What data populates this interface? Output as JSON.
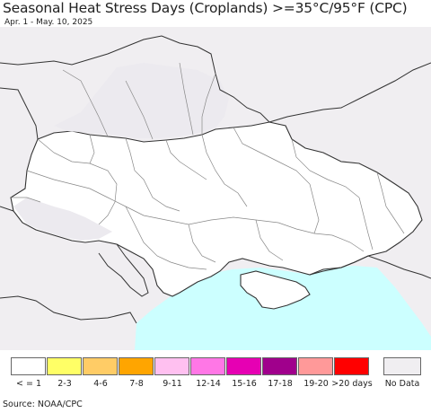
{
  "title": "Seasonal Heat Stress Days (Croplands) >=35°C/95°F (CPC)",
  "subtitle": "Apr. 1 - May. 10, 2025",
  "source": "Source: NOAA/CPC",
  "colors": {
    "land": "#ffffff",
    "sea": "#ccffff",
    "no_data": "#f0eef1",
    "border": "#333333",
    "province_border": "#888888"
  },
  "legend": [
    {
      "label": "< = 1",
      "color": "#ffffff"
    },
    {
      "label": "2-3",
      "color": "#ffff66"
    },
    {
      "label": "4-6",
      "color": "#ffcc66"
    },
    {
      "label": "7-8",
      "color": "#ffa500"
    },
    {
      "label": "9-11",
      "color": "#ffc0f0"
    },
    {
      "label": "12-14",
      "color": "#ff77e6"
    },
    {
      "label": "15-16",
      "color": "#e600b3"
    },
    {
      "label": "17-18",
      "color": "#a0008c"
    },
    {
      "label": "19-20",
      "color": "#ff9999"
    },
    {
      "label": ">20 days",
      "color": "#ff0000"
    }
  ],
  "no_data_label": "No Data"
}
